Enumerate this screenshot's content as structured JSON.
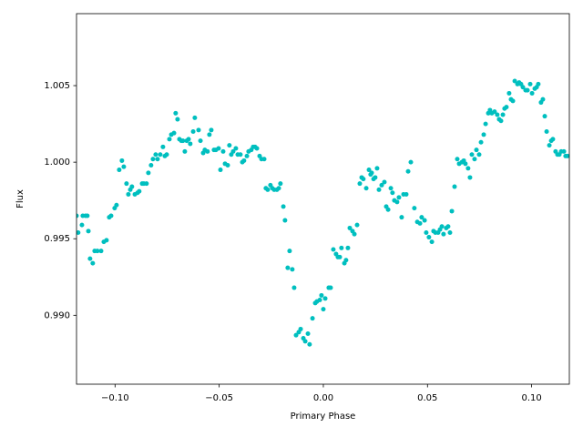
{
  "chart_data": {
    "type": "scatter",
    "xlabel": "Primary Phase",
    "ylabel": "Flux",
    "xlim": [
      -0.1185,
      0.1181
    ],
    "ylim": [
      0.9855,
      1.0097
    ],
    "xticks": [
      {
        "value": -0.1,
        "label": "−0.10"
      },
      {
        "value": -0.05,
        "label": "−0.05"
      },
      {
        "value": 0,
        "label": "0.00"
      },
      {
        "value": 0.05,
        "label": "0.05"
      },
      {
        "value": 0.1,
        "label": "0.10"
      }
    ],
    "yticks": [
      {
        "value": 0.99,
        "label": "0.990"
      },
      {
        "value": 0.995,
        "label": "0.995"
      },
      {
        "value": 1,
        "label": "1.000"
      },
      {
        "value": 1.005,
        "label": "1.005"
      }
    ],
    "grid": false,
    "series": [
      {
        "color": "#00bfbf",
        "x": [
          -0.1185,
          -0.1177,
          -0.1159,
          -0.1155,
          -0.1142,
          -0.1133,
          -0.1128,
          -0.112,
          -0.1107,
          -0.1098,
          -0.1085,
          -0.1067,
          -0.1054,
          -0.1041,
          -0.1028,
          -0.1019,
          -0.1002,
          -0.0993,
          -0.098,
          -0.0967,
          -0.0958,
          -0.0945,
          -0.0936,
          -0.0927,
          -0.0919,
          -0.0905,
          -0.0892,
          -0.0884,
          -0.087,
          -0.0862,
          -0.0849,
          -0.084,
          -0.0827,
          -0.0818,
          -0.0805,
          -0.0796,
          -0.0783,
          -0.077,
          -0.0761,
          -0.0752,
          -0.0739,
          -0.073,
          -0.0717,
          -0.0709,
          -0.07,
          -0.0691,
          -0.0682,
          -0.0674,
          -0.0665,
          -0.0656,
          -0.0647,
          -0.0639,
          -0.0625,
          -0.0617,
          -0.0599,
          -0.059,
          -0.0577,
          -0.0569,
          -0.0556,
          -0.0547,
          -0.0538,
          -0.0525,
          -0.0516,
          -0.0503,
          -0.0494,
          -0.0481,
          -0.0472,
          -0.0459,
          -0.0451,
          -0.0442,
          -0.0433,
          -0.042,
          -0.0411,
          -0.0398,
          -0.0389,
          -0.0381,
          -0.0367,
          -0.0359,
          -0.0346,
          -0.0337,
          -0.0328,
          -0.0319,
          -0.0306,
          -0.0297,
          -0.0284,
          -0.0276,
          -0.0267,
          -0.0254,
          -0.0245,
          -0.0236,
          -0.0223,
          -0.0214,
          -0.0206,
          -0.0192,
          -0.0184,
          -0.0171,
          -0.0162,
          -0.0149,
          -0.014,
          -0.0131,
          -0.0118,
          -0.0109,
          -0.0096,
          -0.0087,
          -0.0074,
          -0.0066,
          -0.0052,
          -0.0039,
          -0.0031,
          -0.0017,
          -0.0009,
          0.0,
          0.0009,
          0.0026,
          0.0035,
          0.0048,
          0.0061,
          0.007,
          0.0079,
          0.0087,
          0.0101,
          0.0109,
          0.0118,
          0.0127,
          0.014,
          0.0149,
          0.0162,
          0.0175,
          0.0184,
          0.0192,
          0.0206,
          0.0219,
          0.0227,
          0.0232,
          0.0241,
          0.0249,
          0.0258,
          0.0267,
          0.028,
          0.0293,
          0.0302,
          0.0311,
          0.0324,
          0.0332,
          0.0341,
          0.0354,
          0.0363,
          0.0376,
          0.0385,
          0.0398,
          0.0407,
          0.042,
          0.0437,
          0.0451,
          0.0464,
          0.0472,
          0.0486,
          0.0494,
          0.0507,
          0.0521,
          0.0529,
          0.0538,
          0.0551,
          0.056,
          0.0569,
          0.0577,
          0.059,
          0.0599,
          0.0608,
          0.0617,
          0.063,
          0.0643,
          0.0652,
          0.0665,
          0.0674,
          0.0682,
          0.0695,
          0.0704,
          0.0713,
          0.0726,
          0.0735,
          0.0748,
          0.0757,
          0.077,
          0.0779,
          0.0792,
          0.08,
          0.0809,
          0.0822,
          0.0835,
          0.0844,
          0.0853,
          0.0862,
          0.087,
          0.0879,
          0.0892,
          0.0901,
          0.091,
          0.0919,
          0.0932,
          0.094,
          0.0949,
          0.0958,
          0.0971,
          0.098,
          0.0993,
          0.1002,
          0.1015,
          0.1024,
          0.1032,
          0.1045,
          0.1054,
          0.1063,
          0.1072,
          0.1085,
          0.1094,
          0.1102,
          0.1115,
          0.1124,
          0.1133,
          0.1142,
          0.1155,
          0.1163,
          0.1172
        ],
        "values": [
          0.9965,
          0.9954,
          0.9959,
          0.9965,
          0.9965,
          0.9965,
          0.9955,
          0.9937,
          0.9934,
          0.9942,
          0.9942,
          0.9942,
          0.9948,
          0.9949,
          0.9964,
          0.9965,
          0.997,
          0.9972,
          0.9995,
          1.0001,
          0.9997,
          0.9986,
          0.9979,
          0.9982,
          0.9984,
          0.9979,
          0.998,
          0.9981,
          0.9986,
          0.9986,
          0.9986,
          0.9993,
          0.9998,
          1.0002,
          1.0005,
          1.0002,
          1.0005,
          1.001,
          1.0004,
          1.0005,
          1.0015,
          1.0018,
          1.0019,
          1.0032,
          1.0028,
          1.0015,
          1.0014,
          1.0014,
          1.0007,
          1.0014,
          1.0015,
          1.0012,
          1.002,
          1.0029,
          1.0021,
          1.0014,
          1.0006,
          1.0008,
          1.0007,
          1.0018,
          1.0021,
          1.0008,
          1.0008,
          1.0009,
          0.9995,
          1.0007,
          0.9999,
          0.9998,
          1.0011,
          1.0005,
          1.0007,
          1.0009,
          1.0005,
          1.0005,
          1.0,
          1.0001,
          1.0004,
          1.0007,
          1.0008,
          1.001,
          1.001,
          1.0009,
          1.0004,
          1.0002,
          1.0002,
          0.9983,
          0.9982,
          0.9985,
          0.9983,
          0.9982,
          0.9982,
          0.9983,
          0.9986,
          0.9971,
          0.9962,
          0.9931,
          0.9942,
          0.993,
          0.9918,
          0.9887,
          0.9889,
          0.9891,
          0.9885,
          0.9883,
          0.9888,
          0.9881,
          0.9898,
          0.9908,
          0.9909,
          0.991,
          0.9913,
          0.9904,
          0.9911,
          0.9918,
          0.9918,
          0.9943,
          0.994,
          0.9938,
          0.9938,
          0.9944,
          0.9934,
          0.9936,
          0.9944,
          0.9957,
          0.9955,
          0.9953,
          0.9959,
          0.9986,
          0.999,
          0.9989,
          0.9983,
          0.9995,
          0.9992,
          0.9993,
          0.9989,
          0.999,
          0.9996,
          0.9982,
          0.9985,
          0.9987,
          0.9971,
          0.9969,
          0.9983,
          0.998,
          0.9975,
          0.9974,
          0.9977,
          0.9964,
          0.9979,
          0.9979,
          0.9994,
          1.0,
          0.997,
          0.9961,
          0.996,
          0.9964,
          0.9962,
          0.9954,
          0.9951,
          0.9948,
          0.9955,
          0.9954,
          0.9954,
          0.9956,
          0.9958,
          0.9953,
          0.9957,
          0.9958,
          0.9954,
          0.9968,
          0.9984,
          1.0002,
          0.9999,
          1.0,
          1.0001,
          0.9999,
          0.9996,
          0.999,
          1.0005,
          1.0002,
          1.0008,
          1.0005,
          1.0013,
          1.0018,
          1.0025,
          1.0032,
          1.0034,
          1.0032,
          1.0033,
          1.0031,
          1.0028,
          1.0027,
          1.0031,
          1.0035,
          1.0036,
          1.0045,
          1.0041,
          1.004,
          1.0053,
          1.0051,
          1.0052,
          1.0051,
          1.0049,
          1.0047,
          1.0047,
          1.0051,
          1.0045,
          1.0048,
          1.0049,
          1.0051,
          1.0039,
          1.0041,
          1.003,
          1.002,
          1.0011,
          1.0014,
          1.0015,
          1.0007,
          1.0005,
          1.0005,
          1.0007,
          1.0007,
          1.0004,
          1.0004
        ]
      }
    ]
  }
}
